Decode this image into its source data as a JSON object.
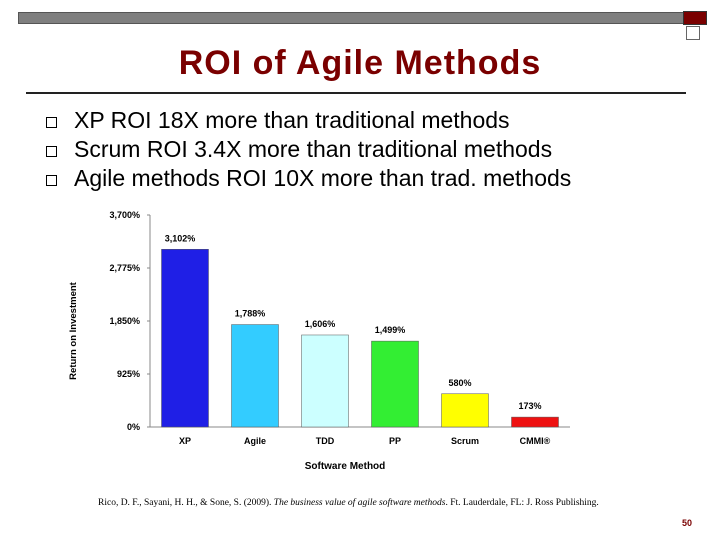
{
  "slide": {
    "title": "ROI of Agile Methods",
    "bullets": [
      "XP ROI 18X more than traditional methods",
      "Scrum ROI 3.4X more than traditional methods",
      "Agile methods ROI 10X more than trad. methods"
    ],
    "citation_authors": "Rico, D. F., Sayani, H. H., & Sone, S. (2009). ",
    "citation_title": "The business value of agile software methods",
    "citation_rest": ". Ft. Lauderdale, FL: J. Ross Publishing.",
    "page_number": "50",
    "colors": {
      "title": "#7a0000",
      "top_bar": "#7f7f7f",
      "accent_square": "#7a0000"
    }
  },
  "chart_data": {
    "type": "bar",
    "xlabel": "Software Method",
    "ylabel": "Return on Investment",
    "categories": [
      "XP",
      "Agile",
      "TDD",
      "PP",
      "Scrum",
      "CMMI®"
    ],
    "values": [
      3102,
      1788,
      1606,
      1499,
      580,
      173
    ],
    "value_labels": [
      "3,102%",
      "1,788%",
      "1,606%",
      "1,499%",
      "580%",
      "173%"
    ],
    "bar_colors": [
      "#1f1fe6",
      "#33ccff",
      "#ccffff",
      "#33ee33",
      "#ffff00",
      "#ee1111"
    ],
    "ylim": [
      0,
      3700
    ],
    "yticks": [
      0,
      925,
      1850,
      2775,
      3700
    ],
    "ytick_labels": [
      "0%",
      "925%",
      "1,850%",
      "2,775%",
      "3,700%"
    ],
    "grid": false,
    "legend": "none"
  }
}
